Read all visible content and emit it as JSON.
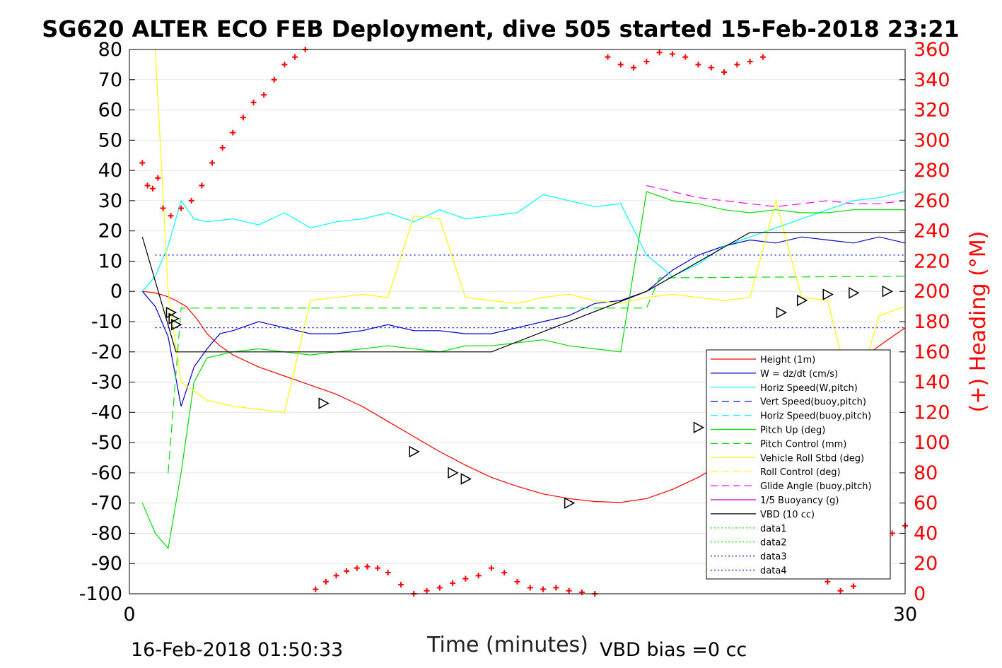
{
  "chart_data": {
    "type": "line",
    "title": "SG620 ALTER ECO FEB Deployment, dive 505 started 15-Feb-2018 23:21",
    "xlabel": "Time (minutes)",
    "ylabel_right": "(+) Heading (°M)",
    "xlim": [
      0,
      30
    ],
    "ylim": [
      -100,
      80
    ],
    "ylim_right": [
      0,
      360
    ],
    "x_ticks": [
      "0",
      "30"
    ],
    "y_ticks": [
      "80",
      "70",
      "60",
      "50",
      "40",
      "30",
      "20",
      "10",
      "0",
      "-10",
      "-20",
      "-30",
      "-40",
      "-50",
      "-60",
      "-70",
      "-80",
      "-90",
      "-100"
    ],
    "y_ticks_right": [
      "360",
      "340",
      "320",
      "300",
      "280",
      "260",
      "240",
      "220",
      "200",
      "180",
      "160",
      "140",
      "120",
      "100",
      "80",
      "60",
      "40",
      "20",
      "0"
    ],
    "grid": true,
    "legend_position": "bottom-right",
    "footer_left": "16-Feb-2018 01:50:33",
    "footer_right": "VBD bias =0 cc",
    "series": [
      {
        "name": "Height (1m)",
        "color": "#ff0000",
        "style": "solid",
        "x": [
          0.5,
          1.0,
          1.4,
          1.8,
          2.2,
          2.6,
          3.0,
          3.5,
          4.0,
          5.0,
          6.0,
          7.0,
          8.0,
          9.0,
          10.0,
          11.0,
          12.0,
          13.0,
          14.0,
          15.0,
          16.0,
          17.0,
          18.0,
          19.0,
          20.0,
          21.0,
          22.0,
          23.0,
          24.0,
          25.0,
          26.0,
          27.0,
          28.0,
          29.0,
          30.0
        ],
        "y": [
          0.0,
          -0.5,
          -1.5,
          -3.0,
          -5.0,
          -9.0,
          -14.0,
          -18.0,
          -21.0,
          -25.0,
          -28.0,
          -31.0,
          -34.0,
          -38.0,
          -43.0,
          -48.0,
          -53.0,
          -57.5,
          -61.5,
          -64.5,
          -67.0,
          -68.5,
          -69.5,
          -69.8,
          -68.5,
          -65.5,
          -61.5,
          -56.5,
          -50.5,
          -44.5,
          -38.0,
          -31.0,
          -24.5,
          -18.0,
          -12.0
        ]
      },
      {
        "name": "W = dz/dt (cm/s)",
        "color": "#0000cc",
        "style": "solid",
        "x": [
          0.5,
          1.0,
          1.5,
          2.0,
          2.5,
          3.0,
          3.5,
          4.0,
          5.0,
          6.0,
          7.0,
          8.0,
          9.0,
          10.0,
          11.0,
          12.0,
          13.0,
          14.0,
          15.0,
          16.0,
          17.0,
          18.0,
          19.0,
          20.0,
          21.0,
          22.0,
          23.0,
          24.0,
          25.0,
          26.0,
          27.0,
          28.0,
          29.0,
          30.0
        ],
        "y": [
          0.0,
          -5.0,
          -15.0,
          -38.0,
          -25.0,
          -19.0,
          -14.0,
          -13.0,
          -10.0,
          -12.0,
          -14.0,
          -14.0,
          -13.0,
          -11.0,
          -13.0,
          -13.0,
          -14.0,
          -14.0,
          -12.0,
          -10.0,
          -8.0,
          -4.0,
          -3.0,
          0.0,
          7.0,
          12.0,
          15.0,
          17.0,
          16.0,
          18.0,
          17.0,
          16.0,
          18.0,
          16.0
        ]
      },
      {
        "name": "Horiz Speed(W,pitch)",
        "color": "#00ffff",
        "style": "solid",
        "x": [
          0.5,
          1.0,
          1.5,
          2.0,
          2.5,
          3.0,
          4.0,
          5.0,
          6.0,
          7.0,
          8.0,
          9.0,
          10.0,
          11.0,
          12.0,
          13.0,
          14.0,
          15.0,
          16.0,
          17.0,
          18.0,
          19.0,
          20.0,
          21.0,
          22.0,
          23.0,
          24.0,
          25.0,
          26.0,
          27.0,
          28.0,
          29.0,
          30.0
        ],
        "y": [
          0.0,
          5.0,
          15.0,
          30.0,
          24.0,
          23.0,
          24.0,
          22.0,
          26.0,
          21.0,
          23.0,
          24.0,
          26.0,
          23.0,
          27.0,
          24.0,
          25.0,
          26.0,
          32.0,
          30.0,
          28.0,
          29.0,
          12.0,
          5.0,
          9.0,
          15.0,
          18.0,
          21.0,
          24.0,
          27.0,
          30.0,
          31.0,
          33.0
        ]
      },
      {
        "name": "Vert Speed(buoy,pitch)",
        "color": "#0000cc",
        "style": "dashed",
        "x": [],
        "y": []
      },
      {
        "name": "Horiz Speed(buoy,pitch)",
        "color": "#00ffff",
        "style": "dashed",
        "x": [],
        "y": []
      },
      {
        "name": "Pitch Up (deg)",
        "color": "#00dd00",
        "style": "solid",
        "x": [
          0.5,
          1.0,
          1.5,
          2.0,
          2.5,
          3.0,
          4.0,
          5.0,
          6.0,
          7.0,
          8.0,
          9.0,
          10.0,
          11.0,
          12.0,
          13.0,
          14.0,
          15.0,
          16.0,
          17.0,
          18.0,
          19.0,
          20.0,
          21.0,
          22.0,
          23.0,
          24.0,
          25.0,
          26.0,
          27.0,
          28.0,
          29.0,
          30.0
        ],
        "y": [
          -70.0,
          -80.0,
          -85.0,
          -60.0,
          -30.0,
          -22.0,
          -20.0,
          -19.0,
          -20.0,
          -21.0,
          -20.0,
          -19.0,
          -18.0,
          -19.0,
          -20.0,
          -18.0,
          -18.0,
          -17.0,
          -16.0,
          -18.0,
          -19.0,
          -20.0,
          33.0,
          30.0,
          29.0,
          27.0,
          26.0,
          27.0,
          26.0,
          26.0,
          27.0,
          27.0,
          27.0
        ]
      },
      {
        "name": "Pitch Control (mm)",
        "color": "#00dd00",
        "style": "dashed",
        "x": [
          1.5,
          2.0,
          3.0,
          20.0,
          20.5,
          30.0
        ],
        "y": [
          -60.0,
          -5.5,
          -5.5,
          -5.5,
          4.5,
          5.0
        ]
      },
      {
        "name": "Vehicle Roll Stbd (deg)",
        "color": "#ffff00",
        "style": "solid",
        "x": [
          1.0,
          1.5,
          2.0,
          3.0,
          4.0,
          5.0,
          6.0,
          7.0,
          8.0,
          9.0,
          10.0,
          11.0,
          12.0,
          13.0,
          14.0,
          15.0,
          16.0,
          17.0,
          18.0,
          19.0,
          20.0,
          21.0,
          22.0,
          23.0,
          24.0,
          25.0,
          26.0,
          27.0,
          28.0,
          29.0,
          30.0
        ],
        "y": [
          80.0,
          0.0,
          -30.0,
          -36.0,
          -38.0,
          -39.0,
          -40.0,
          -3.0,
          -2.0,
          -1.0,
          -2.0,
          25.0,
          24.0,
          -2.0,
          -3.0,
          -4.0,
          -2.0,
          -1.0,
          -3.0,
          -4.0,
          -2.0,
          -1.0,
          -2.0,
          -3.0,
          -2.0,
          30.0,
          -2.0,
          -3.0,
          -37.0,
          -8.0,
          -5.0
        ]
      },
      {
        "name": "Roll Control (deg)",
        "color": "#ffff00",
        "style": "dashed",
        "x": [],
        "y": []
      },
      {
        "name": "Glide Angle (buoy,pitch)",
        "color": "#ff00ff",
        "style": "dashed",
        "x": [
          20.0,
          21.0,
          22.0,
          23.0,
          24.0,
          25.0,
          26.0,
          27.0,
          28.0,
          29.0,
          30.0
        ],
        "y": [
          35.0,
          33.0,
          31.0,
          30.0,
          29.0,
          28.0,
          29.0,
          30.0,
          29.0,
          29.0,
          30.0
        ]
      },
      {
        "name": "1/5 Buoyancy (g)",
        "color": "#cc00cc",
        "style": "solid",
        "x": [],
        "y": []
      },
      {
        "name": "VBD (10 cc)",
        "color": "#000000",
        "style": "solid",
        "x": [
          0.5,
          1.8,
          7.0,
          14.0,
          20.0,
          24.0,
          30.0
        ],
        "y": [
          18.0,
          -20.0,
          -20.0,
          -20.0,
          0.0,
          19.5,
          19.5
        ]
      },
      {
        "name": "data1",
        "color": "#00dd00",
        "style": "dotted",
        "x": [],
        "y": []
      },
      {
        "name": "data2",
        "color": "#00dd00",
        "style": "dotted",
        "x": [],
        "y": []
      },
      {
        "name": "data3",
        "color": "#0000cc",
        "style": "dotted",
        "x": [
          1.0,
          30.0
        ],
        "y": [
          -12.0,
          -12.0
        ]
      },
      {
        "name": "data4",
        "color": "#0000cc",
        "style": "dotted",
        "x": [
          1.0,
          30.0
        ],
        "y": [
          12.0,
          12.0
        ]
      }
    ],
    "heading_points": {
      "x": [
        0.5,
        0.7,
        0.9,
        1.1,
        1.3,
        1.6,
        2.0,
        2.4,
        2.8,
        3.2,
        3.6,
        4.0,
        4.4,
        4.8,
        5.2,
        5.6,
        6.0,
        6.4,
        6.8,
        7.2,
        7.6,
        8.0,
        8.4,
        8.8,
        9.2,
        9.6,
        10.0,
        10.5,
        11.0,
        11.5,
        12.0,
        12.5,
        13.0,
        13.5,
        14.0,
        14.5,
        15.0,
        15.5,
        16.0,
        16.5,
        17.0,
        17.5,
        18.0,
        18.5,
        19.0,
        19.5,
        20.0,
        20.5,
        21.0,
        21.5,
        22.0,
        22.5,
        23.0,
        23.5,
        24.0,
        24.5,
        25.0,
        25.5,
        26.0,
        26.5,
        27.0,
        27.5,
        28.0,
        28.5,
        29.0,
        29.5,
        30.0
      ],
      "y": [
        285.0,
        270.0,
        268.0,
        275.0,
        255.0,
        250.0,
        255.0,
        260.0,
        270.0,
        285.0,
        295.0,
        305.0,
        315.0,
        325.0,
        330.0,
        340.0,
        350.0,
        355.0,
        360.0,
        3.0,
        8.0,
        12.0,
        15.0,
        17.0,
        18.0,
        17.0,
        14.0,
        6.0,
        0.0,
        2.0,
        4.0,
        7.0,
        10.0,
        12.0,
        17.0,
        14.0,
        8.0,
        4.0,
        3.0,
        4.0,
        2.0,
        1.0,
        0.0,
        355.0,
        350.0,
        348.0,
        352.0,
        358.0,
        357.0,
        355.0,
        350.0,
        348.0,
        345.0,
        350.0,
        352.0,
        355.0,
        20.0,
        25.0,
        28.0,
        15.0,
        8.0,
        2.0,
        5.0,
        30.0,
        38.0,
        40.0,
        45.0
      ]
    },
    "markers": {
      "x": [
        1.6,
        1.7,
        1.8,
        7.5,
        11.0,
        12.5,
        13.0,
        17.0,
        22.0,
        22.8,
        23.6,
        24.4,
        25.2,
        26.0,
        27.0,
        28.0,
        29.3
      ],
      "y": [
        -7.0,
        -9.0,
        -11.0,
        -37.0,
        -53.0,
        -60.0,
        -62.0,
        -70.0,
        -45.0,
        -40.0,
        -34.0,
        -26.0,
        -7.0,
        -3.0,
        -1.0,
        -0.5,
        0.0
      ]
    }
  },
  "legend": {
    "items": [
      {
        "label": "Height (1m)",
        "color": "#ff0000",
        "style": "solid"
      },
      {
        "label": "W = dz/dt (cm/s)",
        "color": "#0000cc",
        "style": "solid"
      },
      {
        "label": "Horiz Speed(W,pitch)",
        "color": "#00ffff",
        "style": "solid"
      },
      {
        "label": "Vert Speed(buoy,pitch)",
        "color": "#0000cc",
        "style": "dashed"
      },
      {
        "label": "Horiz Speed(buoy,pitch)",
        "color": "#00ffff",
        "style": "dashed"
      },
      {
        "label": "Pitch Up (deg)",
        "color": "#00dd00",
        "style": "solid"
      },
      {
        "label": "Pitch Control (mm)",
        "color": "#00dd00",
        "style": "dashed"
      },
      {
        "label": "Vehicle Roll Stbd (deg)",
        "color": "#ffff00",
        "style": "solid"
      },
      {
        "label": "Roll Control (deg)",
        "color": "#ffff00",
        "style": "dashed"
      },
      {
        "label": "Glide Angle (buoy,pitch)",
        "color": "#ff00ff",
        "style": "dashed"
      },
      {
        "label": "1/5 Buoyancy (g)",
        "color": "#cc00cc",
        "style": "solid"
      },
      {
        "label": "VBD (10 cc)",
        "color": "#000000",
        "style": "solid"
      },
      {
        "label": "data1",
        "color": "#00dd00",
        "style": "dotted"
      },
      {
        "label": "data2",
        "color": "#00dd00",
        "style": "dotted"
      },
      {
        "label": "data3",
        "color": "#0000cc",
        "style": "dotted"
      },
      {
        "label": "data4",
        "color": "#0000cc",
        "style": "dotted"
      }
    ]
  }
}
